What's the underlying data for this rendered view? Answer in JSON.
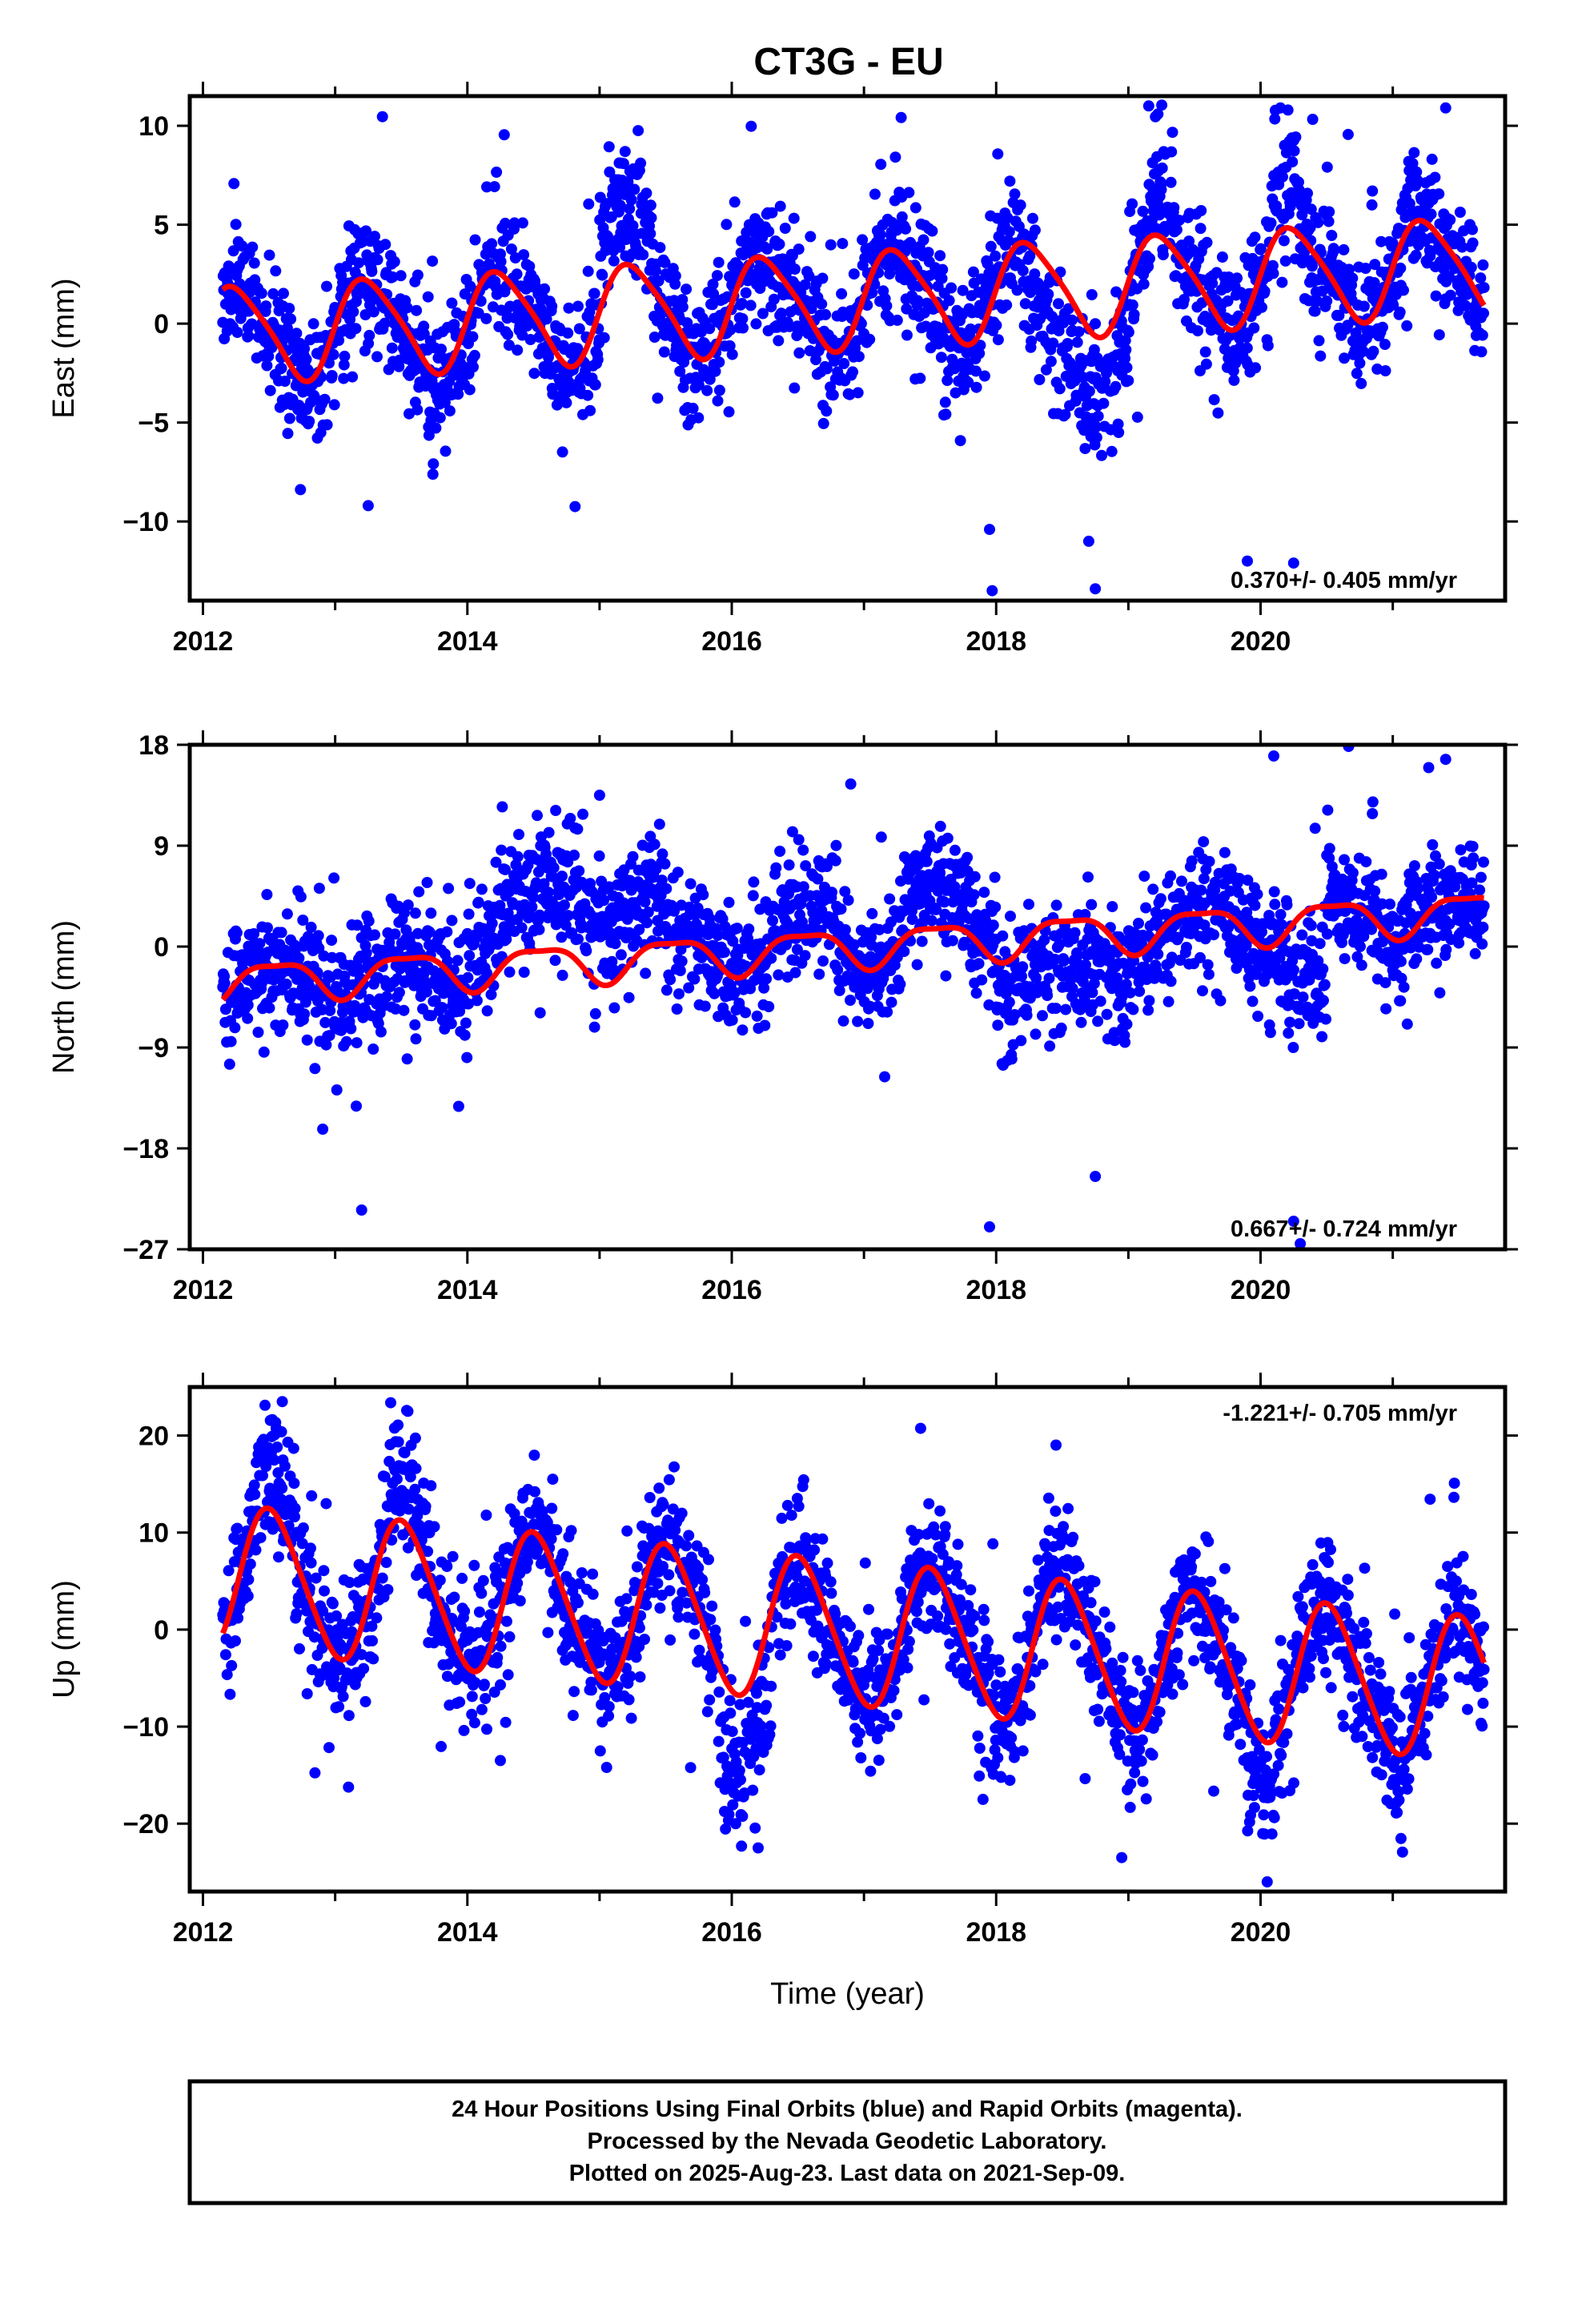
{
  "title": "CT3G - EU",
  "footer": {
    "lines": [
      "24 Hour Positions Using Final Orbits (blue) and Rapid Orbits (magenta).",
      "Processed by the Nevada Geodetic Laboratory.",
      "Plotted on 2025-Aug-23. Last data on 2021-Sep-09."
    ]
  },
  "colors": {
    "points": "#0000ff",
    "model": "#ff0000",
    "frame": "#000000"
  },
  "chart_data": [
    {
      "type": "scatter",
      "panel": "east",
      "ylabel": "East (mm)",
      "xlabel": "",
      "xlim": [
        2011.9,
        2021.85
      ],
      "ylim": [
        -14,
        11.5
      ],
      "yticks": [
        10,
        5,
        0,
        -5,
        -10
      ],
      "ytick_labels": [
        "10",
        "5",
        "0",
        "−5",
        "−10"
      ],
      "xticks": [
        2012,
        2014,
        2016,
        2018,
        2020
      ],
      "xtick_labels": [
        "2012",
        "2014",
        "2016",
        "2018",
        "2020"
      ],
      "rate_text": "0.370+/- 0.405 mm/yr",
      "rate_position": "bottom-right",
      "data_start": 2012.15,
      "data_end": 2021.69,
      "fit": {
        "offset": -0.6,
        "trend_mm_per_yr": 0.37,
        "annual_amp": 2.4,
        "annual_peak": 0.25,
        "semiannual_amp": 0.4,
        "semiannual_phase": 0.1,
        "noise": 1.6
      },
      "anomalies": [
        {
          "from": 2013.4,
          "to": 2013.8,
          "shift": -0.5
        },
        {
          "from": 2015.0,
          "to": 2015.4,
          "shift": 3.0
        },
        {
          "from": 2018.2,
          "to": 2019.0,
          "shift": -3.0
        },
        {
          "from": 2019.15,
          "to": 2019.35,
          "shift": 2.5
        },
        {
          "from": 2020.1,
          "to": 2020.3,
          "shift": 3.0
        }
      ],
      "outliers": [
        [
          2017.97,
          -13.5
        ],
        [
          2018.75,
          -13.4
        ],
        [
          2019.9,
          -12.0
        ],
        [
          2020.25,
          -12.1
        ],
        [
          2020.15,
          10.9
        ],
        [
          2021.4,
          10.9
        ],
        [
          2013.25,
          -9.2
        ],
        [
          2017.95,
          -10.4
        ],
        [
          2018.7,
          -11.0
        ]
      ]
    },
    {
      "type": "scatter",
      "panel": "north",
      "ylabel": "North (mm)",
      "xlabel": "",
      "xlim": [
        2011.9,
        2021.85
      ],
      "ylim": [
        -27,
        18
      ],
      "yticks": [
        18,
        9,
        0,
        -9,
        -18,
        -27
      ],
      "ytick_labels": [
        "18",
        "9",
        "0",
        "−9",
        "−18",
        "−27"
      ],
      "xticks": [
        2012,
        2014,
        2016,
        2018,
        2020
      ],
      "xtick_labels": [
        "2012",
        "2014",
        "2016",
        "2018",
        "2020"
      ],
      "rate_text": "0.667+/- 0.724 mm/yr",
      "rate_position": "bottom-right",
      "data_start": 2012.15,
      "data_end": 2021.69,
      "fit": {
        "offset": -3.3,
        "trend_mm_per_yr": 0.667,
        "annual_amp": 1.7,
        "annual_peak": 0.55,
        "semiannual_amp": 0.5,
        "semiannual_phase": 0.3,
        "noise": 2.6
      },
      "anomalies": [
        {
          "from": 2014.0,
          "to": 2015.5,
          "shift": 5.5
        },
        {
          "from": 2016.3,
          "to": 2016.8,
          "shift": 2.5
        },
        {
          "from": 2017.3,
          "to": 2017.8,
          "shift": 3.5
        },
        {
          "from": 2018.0,
          "to": 2019.0,
          "shift": -4.0
        },
        {
          "from": 2020.2,
          "to": 2020.5,
          "shift": -6.5
        }
      ],
      "outliers": [
        [
          2013.2,
          -23.5
        ],
        [
          2017.95,
          -25.0
        ],
        [
          2018.75,
          -20.5
        ],
        [
          2020.25,
          -24.5
        ],
        [
          2020.3,
          -26.5
        ],
        [
          2020.1,
          17.0
        ],
        [
          2021.4,
          16.7
        ],
        [
          2016.9,
          14.5
        ],
        [
          2015.0,
          13.5
        ]
      ]
    },
    {
      "type": "scatter",
      "panel": "up",
      "ylabel": "Up (mm)",
      "xlabel": "Time (year)",
      "xlim": [
        2011.9,
        2021.85
      ],
      "ylim": [
        -27,
        25
      ],
      "yticks": [
        20,
        10,
        0,
        -10,
        -20
      ],
      "ytick_labels": [
        "20",
        "10",
        "0",
        "−10",
        "−20"
      ],
      "xticks": [
        2012,
        2014,
        2016,
        2018,
        2020
      ],
      "xtick_labels": [
        "2012",
        "2014",
        "2016",
        "2018",
        "2020"
      ],
      "rate_text": "-1.221+/- 0.705 mm/yr",
      "rate_position": "top-right",
      "data_start": 2012.15,
      "data_end": 2021.69,
      "fit": {
        "offset": 5.6,
        "trend_mm_per_yr": -1.221,
        "annual_amp": 7.3,
        "annual_peak": 0.52,
        "semiannual_amp": 0.8,
        "semiannual_phase": 0.4,
        "noise": 3.4
      },
      "anomalies": [
        {
          "from": 2012.4,
          "to": 2012.7,
          "shift": 4.0
        },
        {
          "from": 2013.4,
          "to": 2013.7,
          "shift": 3.5
        },
        {
          "from": 2015.9,
          "to": 2016.3,
          "shift": -8.0
        },
        {
          "from": 2019.9,
          "to": 2020.1,
          "shift": -5.0
        }
      ],
      "outliers": [
        [
          2012.6,
          23.5
        ],
        [
          2013.55,
          22.5
        ],
        [
          2016.2,
          -22.5
        ],
        [
          2018.95,
          -23.5
        ],
        [
          2020.05,
          -26.0
        ],
        [
          2014.25,
          -13.5
        ],
        [
          2017.9,
          -17.5
        ]
      ]
    }
  ]
}
